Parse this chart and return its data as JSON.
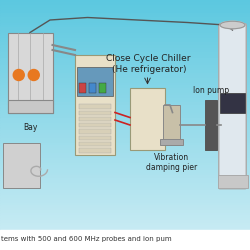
{
  "bg_top_color": "#5bc8e0",
  "bg_bottom_color": "#d0eef5",
  "title_text": "Close Cycle Chiller\n(He refrigerator)",
  "label_bay": "Bay",
  "label_vibration": "Vibration\ndamping pier",
  "label_ion": "Ion pump",
  "caption": "tems with 500 and 600 MHz probes and ion pum",
  "text_color": "#222222",
  "label_fontsize": 5.5,
  "caption_fontsize": 5.0,
  "title_fontsize": 6.5
}
